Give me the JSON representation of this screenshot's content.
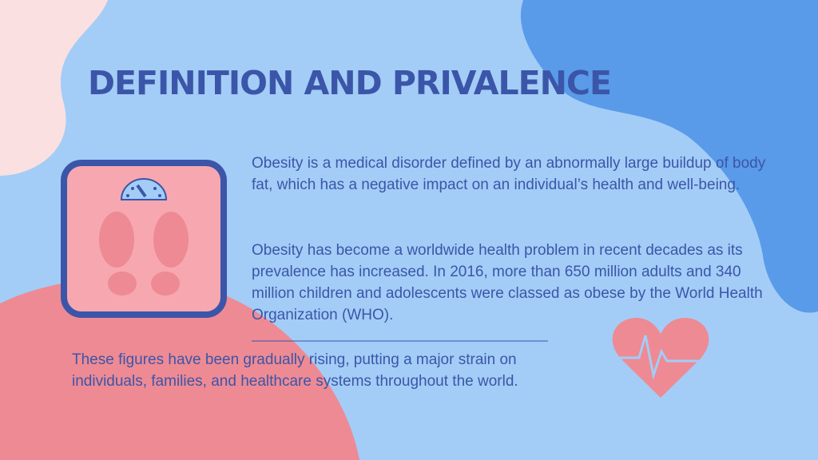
{
  "header": {
    "title": "DEFINITION AND PRIVALENCE"
  },
  "body": {
    "paragraphs": [
      "Obesity is a medical disorder defined by an abnormally large buildup of body fat, which has a negative impact on an individual’s health and well-being.",
      "Obesity has become a worldwide health problem in recent decades as its prevalence has increased. In 2016, more than 650 million adults and 340 million children and adolescents were classed as obese by the World Health Organization (WHO).",
      "These figures have been gradually rising, putting a major strain on individuals, families, and healthcare systems throughout the world."
    ]
  }
}
